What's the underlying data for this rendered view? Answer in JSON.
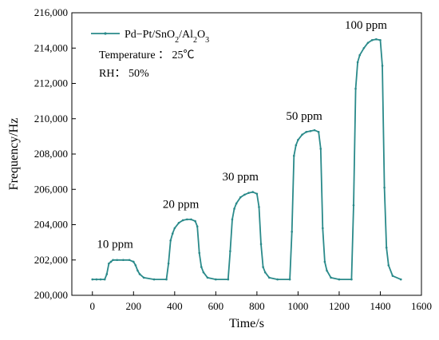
{
  "chart_data": {
    "type": "line",
    "title": "",
    "xlabel": "Time/s",
    "ylabel": "Frequency/Hz",
    "xlim": [
      -100,
      1600
    ],
    "ylim": [
      200000,
      216000
    ],
    "x_ticks": [
      0,
      200,
      400,
      600,
      800,
      1000,
      1200,
      1400,
      1600
    ],
    "x_tick_labels": [
      "0",
      "200",
      "400",
      "600",
      "800",
      "1000",
      "1200",
      "1400",
      "1600"
    ],
    "y_ticks": [
      200000,
      202000,
      204000,
      206000,
      208000,
      210000,
      212000,
      214000,
      216000
    ],
    "y_tick_labels": [
      "200,000",
      "202,000",
      "204,000",
      "206,000",
      "208,000",
      "210,000",
      "212,000",
      "214,000",
      "216,000"
    ],
    "line_color": "#2a8a8a",
    "series": [
      {
        "name_parts": [
          [
            "Pd−Pt/SnO",
            ""
          ],
          [
            "2",
            "sub"
          ],
          [
            "/Al",
            ""
          ],
          [
            "2",
            "sub"
          ],
          [
            "O",
            ""
          ],
          [
            "3",
            "sub"
          ]
        ],
        "x": [
          0,
          20,
          40,
          60,
          70,
          80,
          90,
          100,
          120,
          150,
          180,
          200,
          210,
          220,
          230,
          250,
          300,
          360,
          370,
          380,
          390,
          400,
          420,
          440,
          460,
          480,
          500,
          510,
          520,
          530,
          540,
          560,
          600,
          660,
          670,
          680,
          690,
          700,
          720,
          740,
          760,
          780,
          800,
          810,
          820,
          830,
          840,
          860,
          900,
          960,
          970,
          980,
          990,
          1000,
          1020,
          1040,
          1060,
          1080,
          1100,
          1110,
          1120,
          1130,
          1140,
          1160,
          1200,
          1260,
          1270,
          1280,
          1290,
          1300,
          1320,
          1340,
          1360,
          1380,
          1400,
          1410,
          1420,
          1430,
          1440,
          1460,
          1500
        ],
        "y": [
          200900,
          200900,
          200900,
          200900,
          201200,
          201800,
          201900,
          202000,
          202000,
          202000,
          202000,
          201900,
          201700,
          201400,
          201200,
          201000,
          200900,
          200900,
          201800,
          203100,
          203500,
          203800,
          204100,
          204250,
          204300,
          204300,
          204200,
          203900,
          202400,
          201600,
          201300,
          201000,
          200900,
          200900,
          202500,
          204300,
          204900,
          205200,
          205550,
          205700,
          205800,
          205850,
          205750,
          205000,
          202900,
          201600,
          201300,
          201000,
          200900,
          200900,
          203600,
          207900,
          208500,
          208800,
          209100,
          209250,
          209300,
          209350,
          209250,
          208300,
          203800,
          201900,
          201400,
          201000,
          200900,
          200900,
          205100,
          211700,
          213200,
          213600,
          214000,
          214300,
          214450,
          214500,
          214450,
          213000,
          206100,
          202700,
          201700,
          201100,
          200900
        ]
      }
    ],
    "annotations": [
      {
        "text": "10 ppm",
        "x": 110,
        "y": 202700
      },
      {
        "text": "20 ppm",
        "x": 430,
        "y": 204950
      },
      {
        "text": "30 ppm",
        "x": 720,
        "y": 206500
      },
      {
        "text": "50 ppm",
        "x": 1030,
        "y": 209950
      },
      {
        "text": "100 ppm",
        "x": 1330,
        "y": 215100
      }
    ],
    "legend": {
      "position": "top-left",
      "conditions": [
        "Temperature ： 25℃",
        "RH： 50%"
      ]
    }
  }
}
